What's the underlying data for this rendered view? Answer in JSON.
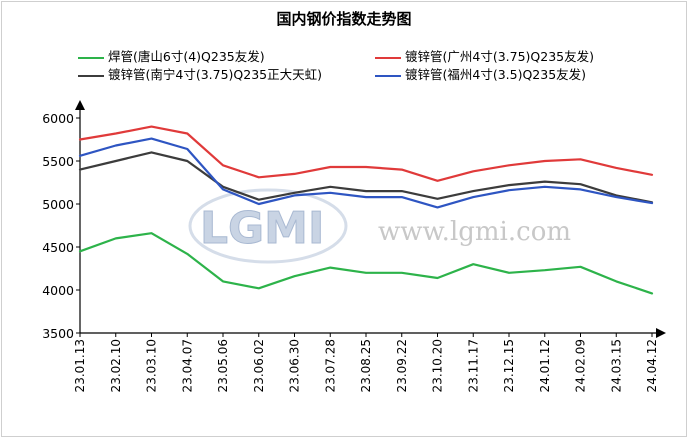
{
  "chart_data": {
    "type": "line",
    "title": "国内钢价指数走势图",
    "xlabel": "",
    "ylabel": "",
    "ylim": [
      3500,
      6000
    ],
    "yticks": [
      3500,
      4000,
      4500,
      5000,
      5500,
      6000
    ],
    "grid": false,
    "legend_placement": "top",
    "watermark": {
      "logo": "LGMI",
      "url": "www.lgmi.com"
    },
    "x": [
      "23.01.13",
      "23.02.10",
      "23.03.10",
      "23.04.07",
      "23.05.06",
      "23.06.02",
      "23.06.30",
      "23.07.28",
      "23.08.25",
      "23.09.22",
      "23.10.20",
      "23.11.17",
      "23.12.15",
      "24.01.12",
      "24.02.09",
      "24.03.15",
      "24.04.12"
    ],
    "series": [
      {
        "name": "焊管(唐山6寸(4)Q235友发)",
        "color": "#2db34a",
        "values": [
          4450,
          4600,
          4660,
          4420,
          4100,
          4020,
          4160,
          4260,
          4200,
          4200,
          4140,
          4300,
          4200,
          4230,
          4270,
          4100,
          3960
        ]
      },
      {
        "name": "镀锌管(广州4寸(3.75)Q235友发)",
        "color": "#e03a3a",
        "values": [
          5750,
          5820,
          5900,
          5820,
          5450,
          5310,
          5350,
          5430,
          5430,
          5400,
          5270,
          5380,
          5450,
          5500,
          5520,
          5420,
          5340
        ]
      },
      {
        "name": "镀锌管(南宁4寸(3.75)Q235正大天虹)",
        "color": "#3c3c3c",
        "values": [
          5400,
          5500,
          5600,
          5500,
          5200,
          5050,
          5130,
          5200,
          5150,
          5150,
          5060,
          5150,
          5220,
          5260,
          5230,
          5100,
          5020
        ]
      },
      {
        "name": "镀锌管(福州4寸(3.5)Q235友发)",
        "color": "#2e55c2",
        "values": [
          5560,
          5680,
          5760,
          5640,
          5170,
          5000,
          5100,
          5130,
          5080,
          5080,
          4960,
          5080,
          5160,
          5200,
          5170,
          5080,
          5010
        ]
      }
    ]
  }
}
